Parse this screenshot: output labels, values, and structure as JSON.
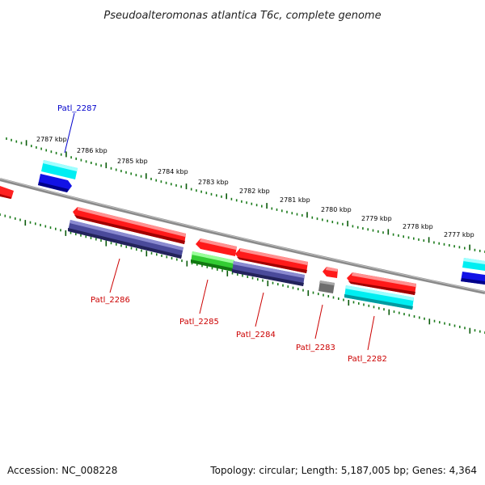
{
  "header": {
    "title": "Pseudoalteromonas atlantica T6c, complete genome"
  },
  "footer": {
    "accession": "Accession: NC_008228",
    "summary": "Topology: circular; Length: 5,187,005 bp; Genes: 4,364"
  },
  "colors": {
    "backbone": "#808080",
    "tick_minor": "#1a7a1a",
    "tick_major": "#0a5a0a",
    "gene_red": "#ff1a1a",
    "gene_navy": "#4a4a9a",
    "gene_green": "#33cc33",
    "gene_cyan": "#00e8ee",
    "gene_blue": "#1010e0",
    "gene_gray": "#707070",
    "label_blue": "#0000cc",
    "label_red": "#cc0000"
  },
  "scale_labels": [
    "2787 kbp",
    "2786 kbp",
    "2785 kbp",
    "2784 kbp",
    "2783 kbp",
    "2782 kbp",
    "2781 kbp",
    "2780 kbp",
    "2779 kbp",
    "2778 kbp",
    "2777 kbp"
  ],
  "gene_labels": [
    {
      "name": "Patl_2287",
      "color": "label_blue"
    },
    {
      "name": "Patl_2286",
      "color": "label_red"
    },
    {
      "name": "Patl_2285",
      "color": "label_red"
    },
    {
      "name": "Patl_2284",
      "color": "label_red"
    },
    {
      "name": "Patl_2283",
      "color": "label_red"
    },
    {
      "name": "Patl_2282",
      "color": "label_red"
    }
  ]
}
